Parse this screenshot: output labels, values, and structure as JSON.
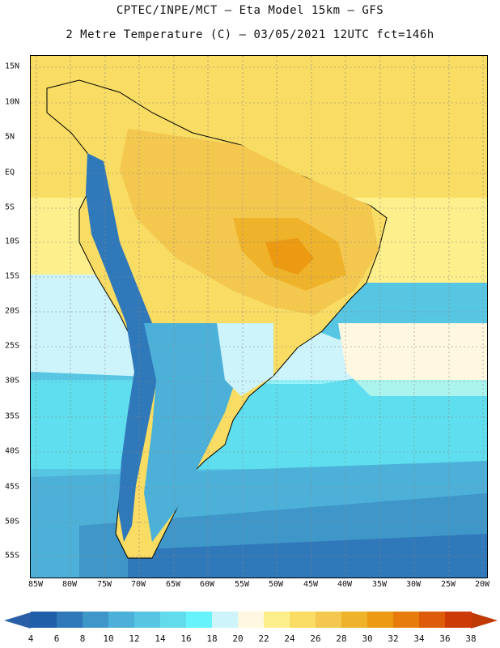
{
  "header": {
    "line1": "CPTEC/INPE/MCT –  Eta Model 15km – GFS",
    "line2": "2 Metre Temperature (C) – 03/05/2021 12UTC fct=146h"
  },
  "map": {
    "lat_labels": [
      "15N",
      "10N",
      "5N",
      "EQ",
      "5S",
      "10S",
      "15S",
      "20S",
      "25S",
      "30S",
      "35S",
      "40S",
      "45S",
      "50S",
      "55S"
    ],
    "lon_labels": [
      "85W",
      "80W",
      "75W",
      "70W",
      "65W",
      "60W",
      "55W",
      "50W",
      "45W",
      "40W",
      "35W",
      "30W",
      "25W",
      "20W"
    ]
  },
  "colorbar": {
    "labels": [
      "4",
      "6",
      "8",
      "10",
      "12",
      "14",
      "16",
      "18",
      "20",
      "22",
      "24",
      "26",
      "28",
      "30",
      "32",
      "34",
      "36",
      "38"
    ],
    "colors": [
      "#1f5ea8",
      "#2f78ba",
      "#3f96c8",
      "#4cb0d8",
      "#57c6e2",
      "#62dbec",
      "#66f3fa",
      "#cdf3fb",
      "#fff7e0",
      "#fdf08c",
      "#f8dc63",
      "#f4c84e",
      "#eeb22b",
      "#eb9a12",
      "#e77c0c",
      "#dd5b09",
      "#cc3a06"
    ],
    "under_color": "#2a5fa8",
    "over_color": "#c03a06"
  }
}
